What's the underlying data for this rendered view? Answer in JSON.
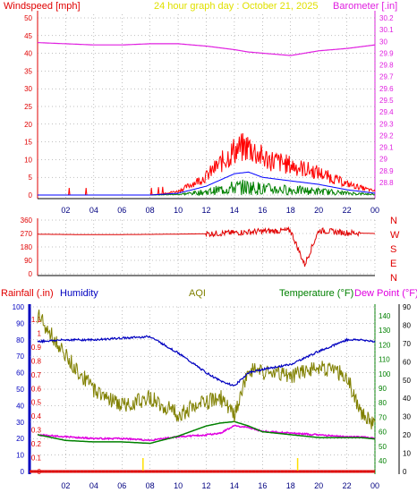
{
  "header": {
    "wind_label": "Windspeed [mph]",
    "title": "24 hour graph day : October 21, 2025",
    "baro_label": "Barometer [.in]"
  },
  "bottom_header": {
    "rain_label": "Rainfall (.in)",
    "humidity_label": "Humidity",
    "aqi_label": "AQI",
    "temp_label": "Temperature (°F)",
    "dew_label": "Dew Point (°F)"
  },
  "x_ticks": [
    "02",
    "04",
    "06",
    "08",
    "10",
    "12",
    "14",
    "16",
    "18",
    "20",
    "22",
    "00"
  ],
  "wind_y_ticks": [
    "0",
    "5",
    "10",
    "15",
    "20",
    "25",
    "30",
    "35",
    "40",
    "45",
    "50"
  ],
  "baro_y_ticks": [
    "28.8",
    "28.9",
    "29",
    "29.1",
    "29.2",
    "29.3",
    "29.4",
    "29.5",
    "29.6",
    "29.7",
    "29.8",
    "29.9",
    "30",
    "30.1",
    "30.2"
  ],
  "dir_y_ticks": [
    "0",
    "90",
    "180",
    "270",
    "360"
  ],
  "dir_letters": [
    "N",
    "W",
    "S",
    "E",
    "N"
  ],
  "rain_y_ticks": [
    "0",
    "0.1",
    "0.2",
    "0.3",
    "0.4",
    "0.5",
    "0.6",
    "0.7",
    "0.8",
    "0.9",
    "1",
    "1.1"
  ],
  "hum_y_ticks": [
    "0",
    "10",
    "20",
    "30",
    "40",
    "50",
    "60",
    "70",
    "80",
    "90",
    "100"
  ],
  "temp_y_ticks": [
    "40",
    "50",
    "60",
    "70",
    "80",
    "90",
    "100",
    "110",
    "120",
    "130",
    "140"
  ],
  "dew_y_ticks": [
    "0",
    "10",
    "20",
    "30",
    "40",
    "50",
    "60",
    "70",
    "80",
    "90"
  ],
  "colors": {
    "wind": "#e00000",
    "barometer": "#e020e0",
    "title": "#e0e000",
    "humidity": "#0000c0",
    "aqi": "#808000",
    "temperature": "#008000",
    "dew": "#e000e0",
    "gust": "#ff0000",
    "avg_wind": "#0000ff",
    "green_wind": "#008000",
    "rain": "#e00000",
    "grid": "#808080"
  },
  "chart_data": [
    {
      "type": "line",
      "panel": "wind-barometer",
      "x_label_unit": "hour",
      "x": [
        0,
        2,
        4,
        6,
        8,
        10,
        12,
        14,
        15,
        16,
        18,
        20,
        22,
        24
      ],
      "series": [
        {
          "name": "Windspeed [mph]",
          "axis": "left",
          "values": [
            0,
            0,
            0,
            0,
            0,
            1,
            5,
            12,
            13,
            10,
            8,
            6,
            3,
            1
          ]
        },
        {
          "name": "Barometer [.in]",
          "axis": "right",
          "values": [
            29.99,
            29.98,
            29.97,
            29.97,
            29.98,
            29.98,
            29.96,
            29.93,
            29.91,
            29.9,
            29.88,
            29.92,
            29.94,
            29.97
          ]
        }
      ],
      "ylim_left": [
        0,
        50
      ],
      "ylim_right": [
        28.8,
        30.2
      ]
    },
    {
      "type": "line",
      "panel": "wind-direction",
      "x": [
        0,
        4,
        8,
        10,
        12,
        14,
        16,
        18,
        19,
        20,
        22,
        24
      ],
      "series": [
        {
          "name": "Direction",
          "values": [
            265,
            262,
            264,
            266,
            268,
            275,
            285,
            290,
            60,
            290,
            275,
            270
          ]
        }
      ],
      "ylim": [
        0,
        360
      ]
    },
    {
      "type": "line",
      "panel": "rain-humidity-aqi-temperature",
      "x": [
        0,
        2,
        4,
        6,
        8,
        10,
        12,
        13,
        14,
        15,
        16,
        18,
        20,
        22,
        23,
        24
      ],
      "series": [
        {
          "name": "Humidity",
          "axis": "humidity",
          "values": [
            79,
            80,
            80,
            81,
            82,
            72,
            60,
            55,
            52,
            60,
            62,
            65,
            73,
            80,
            80,
            79
          ]
        },
        {
          "name": "AQI",
          "axis": "humidity",
          "values": [
            95,
            70,
            50,
            40,
            45,
            35,
            42,
            45,
            33,
            62,
            60,
            58,
            64,
            58,
            35,
            28
          ]
        },
        {
          "name": "Temperature (°F)",
          "axis": "temp",
          "values": [
            58,
            54,
            53,
            53,
            52,
            57,
            64,
            66,
            67,
            64,
            60,
            58,
            56,
            56,
            56,
            55
          ]
        },
        {
          "name": "Dew Point (°F)",
          "axis": "dew",
          "values": [
            20,
            19,
            18,
            18,
            17,
            19,
            20,
            21,
            25,
            24,
            22,
            21,
            20,
            19,
            19,
            18
          ]
        }
      ],
      "ylim_humidity": [
        0,
        100
      ],
      "ylim_rain": [
        0,
        1.1
      ],
      "ylim_temp": [
        40,
        140
      ],
      "ylim_dew": [
        0,
        90
      ]
    }
  ]
}
